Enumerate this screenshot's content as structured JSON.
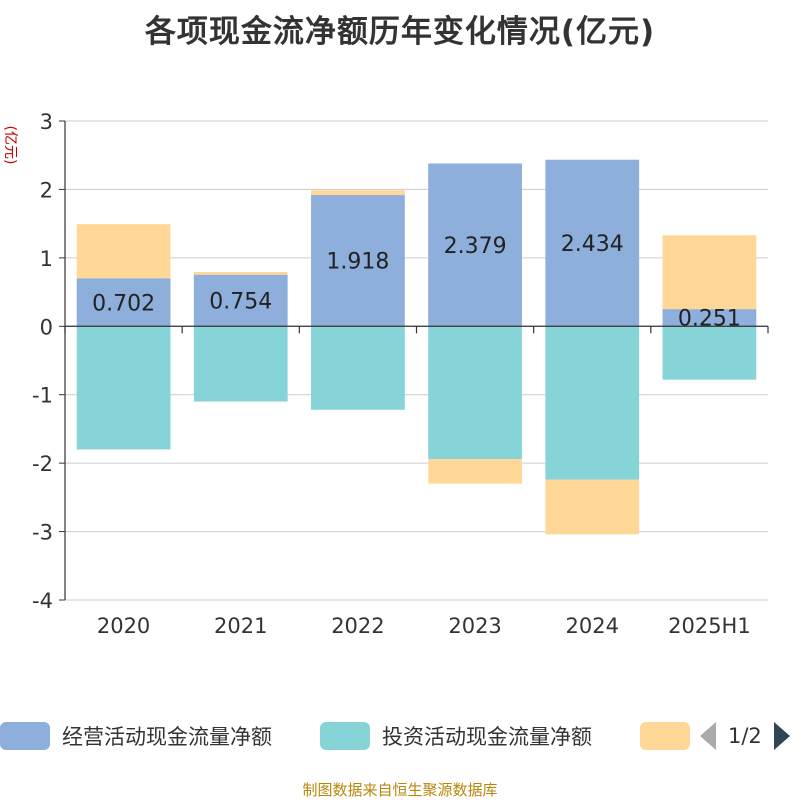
{
  "title": "各项现金流净额历年变化情况(亿元)",
  "y_unit_label": "(亿元)",
  "source": "制图数据来自恒生聚源数据库",
  "legend": {
    "items": [
      {
        "label": "经营活动现金流量净额",
        "color": "#8eaedb"
      },
      {
        "label": "投资活动现金流量净额",
        "color": "#86d4d7"
      },
      {
        "label": "",
        "color": "#ffd898"
      }
    ],
    "page": "1/2"
  },
  "chart_data": {
    "type": "bar",
    "stacked": true,
    "categories": [
      "2020",
      "2021",
      "2022",
      "2023",
      "2024",
      "2025H1"
    ],
    "series": [
      {
        "name": "经营活动现金流量净额",
        "color": "#8eaedb",
        "values": [
          0.702,
          0.754,
          1.918,
          2.379,
          2.434,
          0.251
        ],
        "labels": [
          "0.702",
          "0.754",
          "1.918",
          "2.379",
          "2.434",
          "0.251"
        ]
      },
      {
        "name": "投资活动现金流量净额",
        "color": "#86d4d7",
        "values": [
          -1.8,
          -1.1,
          -1.22,
          -1.94,
          -2.24,
          -0.78
        ]
      },
      {
        "color": "#ffd898",
        "values": [
          0.79,
          0.04,
          0.07,
          -0.36,
          -0.8,
          1.08
        ]
      }
    ],
    "yticks": [
      3,
      2,
      1,
      0,
      -1,
      -2,
      -3,
      -4
    ],
    "ylim": [
      -4,
      3
    ],
    "grid": true,
    "legend_position": "bottom"
  }
}
